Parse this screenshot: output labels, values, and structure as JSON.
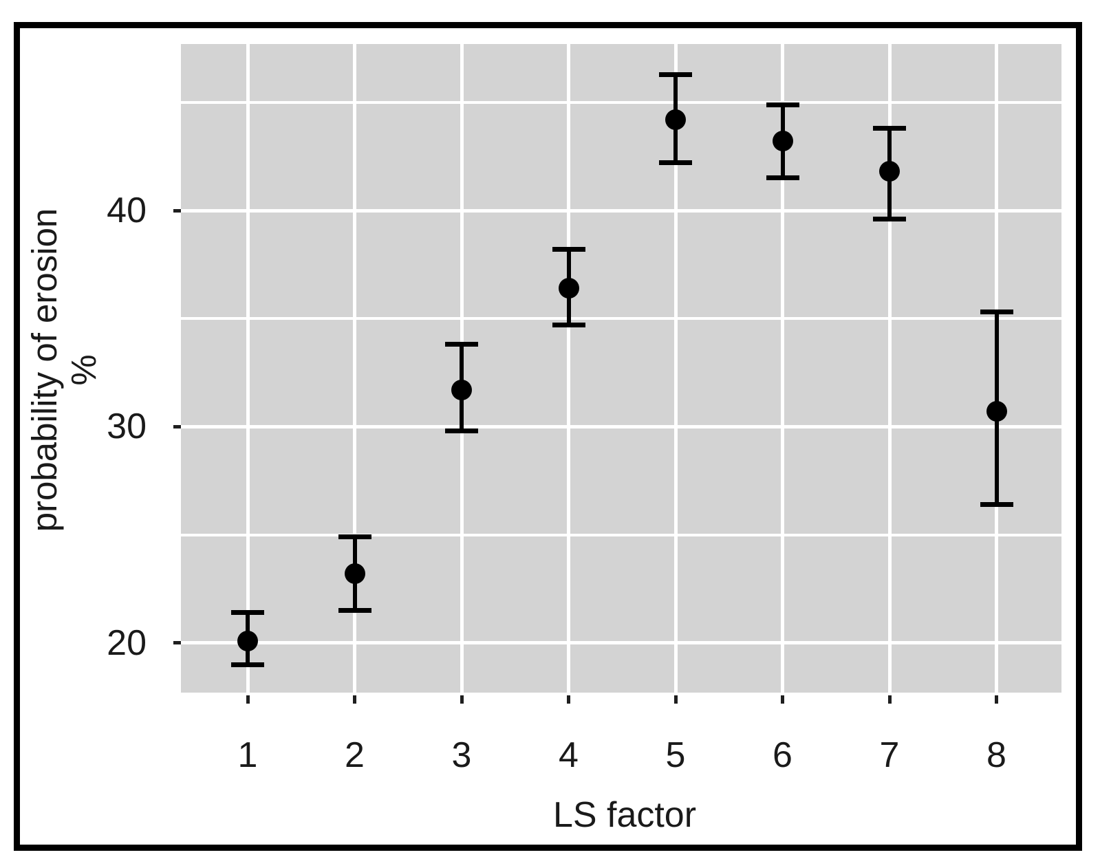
{
  "chart_data": {
    "type": "scatter",
    "subtype": "point-with-errorbars",
    "title": "",
    "xlabel": "LS factor",
    "ylabel": "probability of erosion",
    "ylabel_unit": "%",
    "categories": [
      "1",
      "2",
      "3",
      "4",
      "5",
      "6",
      "7",
      "8"
    ],
    "series": [
      {
        "name": "probability of erosion %",
        "values": [
          20.1,
          23.2,
          31.7,
          36.4,
          44.2,
          43.2,
          41.8,
          30.7
        ],
        "error_low": [
          19.0,
          21.5,
          29.8,
          34.7,
          42.2,
          41.5,
          39.6,
          26.4
        ],
        "error_high": [
          21.4,
          24.9,
          33.8,
          38.2,
          46.3,
          44.9,
          43.8,
          35.3
        ]
      }
    ],
    "ylim": [
      17.7,
      47.7
    ],
    "yticks": [
      20,
      30,
      40
    ],
    "ytick_labels": [
      "20",
      "30",
      "40"
    ],
    "yticks_minor": [
      25,
      35,
      45
    ],
    "grid": "on",
    "legend": "none",
    "colors": {
      "panel_bg": "#d3d3d3",
      "grid": "#ffffff",
      "marker": "#000000",
      "errorbar": "#000000",
      "tick_mark": "#1f1f1f",
      "text": "#1a1a1a",
      "frame": "#000000"
    }
  }
}
